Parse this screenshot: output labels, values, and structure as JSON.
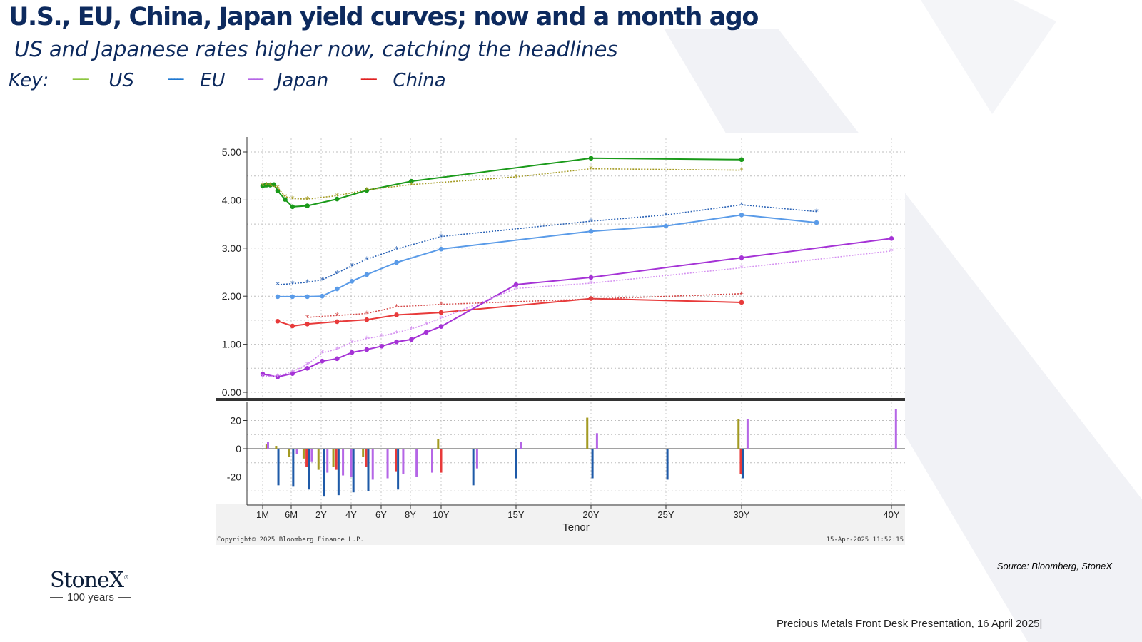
{
  "slide": {
    "title": "U.S., EU, China, Japan yield curves; now and a month ago",
    "subtitle": "US and Japanese rates higher now, catching the headlines",
    "key_label": "Key:",
    "key_items": [
      {
        "dash": "-----",
        "label": "US",
        "color": "#8cc63f"
      },
      {
        "dash": "-----",
        "label": "EU",
        "color": "#1f78d1"
      },
      {
        "dash": "-----",
        "label": "Japan",
        "color": "#b566e6"
      },
      {
        "dash": "-----",
        "label": "China",
        "color": "#e02020"
      }
    ],
    "source": "Source: Bloomberg, StoneX",
    "footer": "Precious Metals Front Desk Presentation, 16 April 2025|",
    "logo_name": "StoneX",
    "logo_sub": "100 years"
  },
  "chart_data": {
    "type": "line",
    "xlabel": "Tenor",
    "copyright": "Copyright© 2025 Bloomberg Finance L.P.",
    "timestamp": "15-Apr-2025 11:52:15",
    "x_ticks": [
      {
        "label": "1M",
        "x": 0.083
      },
      {
        "label": "6M",
        "x": 0.5
      },
      {
        "label": "2Y",
        "x": 2
      },
      {
        "label": "4Y",
        "x": 4
      },
      {
        "label": "6Y",
        "x": 6
      },
      {
        "label": "8Y",
        "x": 8
      },
      {
        "label": "10Y",
        "x": 10
      },
      {
        "label": "15Y",
        "x": 15
      },
      {
        "label": "20Y",
        "x": 20
      },
      {
        "label": "25Y",
        "x": 25
      },
      {
        "label": "30Y",
        "x": 30
      },
      {
        "label": "40Y",
        "x": 40
      }
    ],
    "x_range": [
      0,
      40
    ],
    "top_panel": {
      "ylim": [
        0,
        5.25
      ],
      "y_ticks": [
        "0.00",
        "1.00",
        "2.00",
        "3.00",
        "4.00",
        "5.00"
      ],
      "series": [
        {
          "color": "#1a9a1a",
          "style": "solid",
          "points": [
            [
              0.083,
              4.29
            ],
            [
              0.17,
              4.31
            ],
            [
              0.25,
              4.31
            ],
            [
              0.5,
              4.31
            ],
            [
              0.75,
              4.32
            ],
            [
              1,
              4.19
            ],
            [
              1.5,
              4.01
            ],
            [
              2,
              3.86
            ],
            [
              3,
              3.88
            ],
            [
              5,
              4.02
            ],
            [
              7,
              4.2
            ],
            [
              10,
              4.39
            ],
            [
              20,
              4.87
            ],
            [
              30,
              4.84
            ]
          ]
        },
        {
          "color": "#a39a22",
          "style": "dotted",
          "points": [
            [
              0.083,
              4.3
            ],
            [
              0.25,
              4.32
            ],
            [
              0.5,
              4.31
            ],
            [
              1,
              4.26
            ],
            [
              1.5,
              4.07
            ],
            [
              2,
              4.03
            ],
            [
              3,
              4.02
            ],
            [
              5,
              4.09
            ],
            [
              7,
              4.21
            ],
            [
              10,
              4.32
            ],
            [
              15,
              4.48
            ],
            [
              20,
              4.65
            ],
            [
              30,
              4.62
            ]
          ]
        },
        {
          "color": "#5a9be8",
          "style": "solid",
          "points": [
            [
              1,
              1.99
            ],
            [
              2,
              1.99
            ],
            [
              3,
              1.99
            ],
            [
              4,
              2.0
            ],
            [
              5,
              2.15
            ],
            [
              6,
              2.31
            ],
            [
              7,
              2.45
            ],
            [
              9,
              2.7
            ],
            [
              12,
              2.98
            ],
            [
              20,
              3.35
            ],
            [
              25,
              3.46
            ],
            [
              35,
              3.53
            ],
            [
              30,
              3.69
            ]
          ]
        },
        {
          "color": "#2a62b5",
          "style": "dotted",
          "points": [
            [
              1,
              2.24
            ],
            [
              2,
              2.26
            ],
            [
              3,
              2.29
            ],
            [
              4,
              2.34
            ],
            [
              5,
              2.48
            ],
            [
              6,
              2.63
            ],
            [
              7,
              2.77
            ],
            [
              9,
              2.98
            ],
            [
              12,
              3.24
            ],
            [
              20,
              3.56
            ],
            [
              25,
              3.69
            ],
            [
              35,
              3.76
            ],
            [
              30,
              3.9
            ]
          ]
        },
        {
          "color": "#e83a3a",
          "style": "solid",
          "points": [
            [
              1,
              1.48
            ],
            [
              2,
              1.38
            ],
            [
              3,
              1.42
            ],
            [
              5,
              1.47
            ],
            [
              7,
              1.51
            ],
            [
              9,
              1.61
            ],
            [
              12,
              1.66
            ],
            [
              20,
              1.95
            ],
            [
              30,
              1.87
            ]
          ]
        },
        {
          "color": "#d44a4a",
          "style": "dotted",
          "points": [
            [
              3,
              1.56
            ],
            [
              5,
              1.6
            ],
            [
              7,
              1.64
            ],
            [
              9,
              1.78
            ],
            [
              12,
              1.83
            ],
            [
              20,
              1.94
            ],
            [
              30,
              2.05
            ]
          ]
        },
        {
          "color": "#a533d6",
          "style": "solid",
          "points": [
            [
              0.083,
              0.38
            ],
            [
              1,
              0.32
            ],
            [
              2,
              0.39
            ],
            [
              3,
              0.5
            ],
            [
              4,
              0.65
            ],
            [
              5,
              0.7
            ],
            [
              6,
              0.83
            ],
            [
              7,
              0.89
            ],
            [
              8,
              0.96
            ],
            [
              9,
              1.05
            ],
            [
              10,
              1.1
            ],
            [
              11,
              1.25
            ],
            [
              12,
              1.37
            ],
            [
              15,
              2.24
            ],
            [
              20,
              2.39
            ],
            [
              30,
              2.8
            ],
            [
              40,
              3.2
            ]
          ]
        },
        {
          "color": "#d490f0",
          "style": "dotted",
          "points": [
            [
              0.083,
              0.33
            ],
            [
              1,
              0.34
            ],
            [
              2,
              0.43
            ],
            [
              3,
              0.58
            ],
            [
              4,
              0.82
            ],
            [
              5,
              0.9
            ],
            [
              6,
              1.04
            ],
            [
              7,
              1.12
            ],
            [
              8,
              1.17
            ],
            [
              9,
              1.24
            ],
            [
              10,
              1.32
            ],
            [
              11,
              1.42
            ],
            [
              12,
              1.54
            ],
            [
              15,
              2.16
            ],
            [
              20,
              2.27
            ],
            [
              30,
              2.59
            ],
            [
              40,
              2.94
            ]
          ]
        }
      ]
    },
    "bottom_panel": {
      "ylim": [
        -38,
        30
      ],
      "y_ticks": [
        "-20",
        "0",
        "20"
      ],
      "bars": [
        {
          "x": 0.25,
          "color": "#a39a22",
          "value": 3
        },
        {
          "x": 0.35,
          "color": "#b566e6",
          "value": 5
        },
        {
          "x": 0.9,
          "color": "#a39a22",
          "value": 2
        },
        {
          "x": 1.05,
          "color": "#1e5aa8",
          "value": -26
        },
        {
          "x": 1.75,
          "color": "#a39a22",
          "value": -6
        },
        {
          "x": 2.05,
          "color": "#1e5aa8",
          "value": -27
        },
        {
          "x": 2.3,
          "color": "#b566e6",
          "value": -4
        },
        {
          "x": 2.75,
          "color": "#a39a22",
          "value": -7
        },
        {
          "x": 2.95,
          "color": "#e83a3a",
          "value": -13
        },
        {
          "x": 3.1,
          "color": "#1e5aa8",
          "value": -29
        },
        {
          "x": 3.3,
          "color": "#b566e6",
          "value": -9
        },
        {
          "x": 3.75,
          "color": "#a39a22",
          "value": -15
        },
        {
          "x": 4.1,
          "color": "#1e5aa8",
          "value": -34
        },
        {
          "x": 4.35,
          "color": "#b566e6",
          "value": -17
        },
        {
          "x": 4.75,
          "color": "#a39a22",
          "value": -13
        },
        {
          "x": 4.95,
          "color": "#e83a3a",
          "value": -15
        },
        {
          "x": 5.1,
          "color": "#1e5aa8",
          "value": -33
        },
        {
          "x": 5.4,
          "color": "#b566e6",
          "value": -19
        },
        {
          "x": 5.95,
          "color": "#b566e6",
          "value": -20
        },
        {
          "x": 6.1,
          "color": "#1e5aa8",
          "value": -31
        },
        {
          "x": 6.75,
          "color": "#a39a22",
          "value": -6
        },
        {
          "x": 6.95,
          "color": "#e83a3a",
          "value": -13
        },
        {
          "x": 7.1,
          "color": "#1e5aa8",
          "value": -30
        },
        {
          "x": 7.4,
          "color": "#b566e6",
          "value": -22
        },
        {
          "x": 8.4,
          "color": "#b566e6",
          "value": -21
        },
        {
          "x": 8.95,
          "color": "#e83a3a",
          "value": -16
        },
        {
          "x": 9.1,
          "color": "#1e5aa8",
          "value": -29
        },
        {
          "x": 9.45,
          "color": "#b566e6",
          "value": -18
        },
        {
          "x": 10.35,
          "color": "#b566e6",
          "value": -20
        },
        {
          "x": 11.4,
          "color": "#b566e6",
          "value": -17
        },
        {
          "x": 11.8,
          "color": "#a39a22",
          "value": 7
        },
        {
          "x": 12.0,
          "color": "#e83a3a",
          "value": -17
        },
        {
          "x": 12.15,
          "color": "#1e5aa8",
          "value": -26
        },
        {
          "x": 12.4,
          "color": "#b566e6",
          "value": -14
        },
        {
          "x": 15.0,
          "color": "#1e5aa8",
          "value": -21
        },
        {
          "x": 15.35,
          "color": "#b566e6",
          "value": 5
        },
        {
          "x": 19.75,
          "color": "#a39a22",
          "value": 22
        },
        {
          "x": 20.1,
          "color": "#1e5aa8",
          "value": -21
        },
        {
          "x": 20.4,
          "color": "#b566e6",
          "value": 11
        },
        {
          "x": 25.1,
          "color": "#1e5aa8",
          "value": -22
        },
        {
          "x": 29.8,
          "color": "#a39a22",
          "value": 21
        },
        {
          "x": 29.95,
          "color": "#e83a3a",
          "value": -18
        },
        {
          "x": 30.1,
          "color": "#1e5aa8",
          "value": -21
        },
        {
          "x": 30.4,
          "color": "#b566e6",
          "value": 21
        },
        {
          "x": 40.3,
          "color": "#b566e6",
          "value": 28
        }
      ]
    }
  }
}
